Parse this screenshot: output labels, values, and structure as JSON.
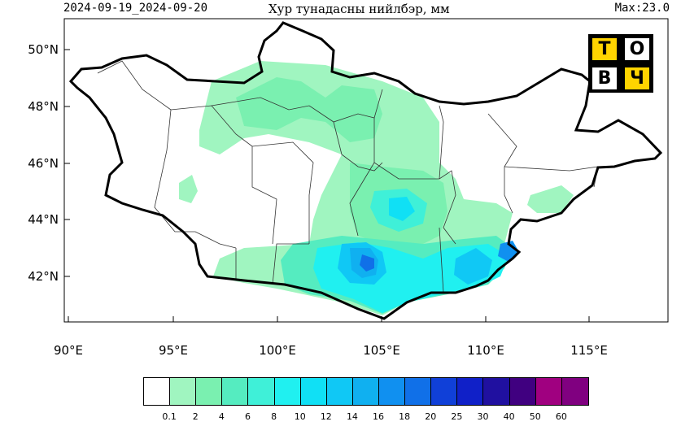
{
  "header": {
    "date_range": "2024-09-19_2024-09-20",
    "title": "Хур тунадасны нийлбэр, мм",
    "max_label": "Max:23.0"
  },
  "logo": {
    "letters": [
      "Т",
      "О",
      "В",
      "Ч"
    ]
  },
  "axes": {
    "lat_labels": [
      "50°N",
      "48°N",
      "46°N",
      "44°N",
      "42°N"
    ],
    "lon_labels": [
      "90°E",
      "95°E",
      "100°E",
      "105°E",
      "110°E",
      "115°E"
    ]
  },
  "colorbar": {
    "labels": [
      "0.1",
      "2",
      "4",
      "6",
      "8",
      "10",
      "12",
      "14",
      "16",
      "18",
      "20",
      "25",
      "30",
      "40",
      "50",
      "60"
    ],
    "colors": [
      "#ffffff",
      "#a0f5c0",
      "#7af0b0",
      "#55ecc0",
      "#3ff0d8",
      "#20f0f0",
      "#10e0f5",
      "#10c8f5",
      "#10b0f0",
      "#1090f0",
      "#1070e8",
      "#1040d8",
      "#1020c8",
      "#2010a0",
      "#400080",
      "#a00080",
      "#800080"
    ]
  }
}
